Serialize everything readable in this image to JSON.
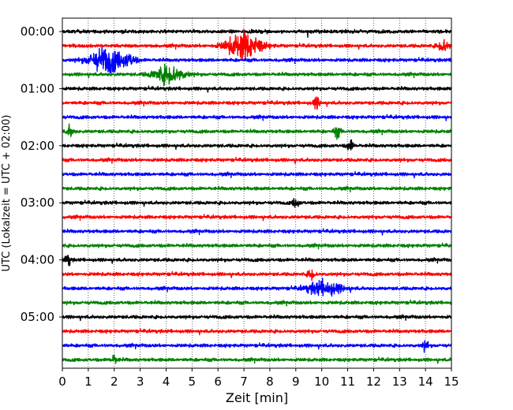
{
  "chart_data": {
    "type": "line",
    "title": "",
    "xlabel": "Zeit  [min]",
    "ylabel": "UTC (Lokalzeit = UTC + 02:00)",
    "xlim": [
      0,
      15
    ],
    "x_ticks": [
      "0",
      "1",
      "2",
      "3",
      "4",
      "5",
      "6",
      "7",
      "8",
      "9",
      "10",
      "11",
      "12",
      "13",
      "14",
      "15"
    ],
    "y_tick_labels": [
      "00:00",
      "01:00",
      "02:00",
      "03:00",
      "04:00",
      "05:00"
    ],
    "grid": "vertical dotted lines at each minute",
    "row_interval_minutes": 15,
    "traces": [
      {
        "start": "00:00",
        "color": "#000000",
        "events": []
      },
      {
        "start": "00:15",
        "color": "#ff0000",
        "events": [
          {
            "t": 7.0,
            "amp": 0.75,
            "width": 1.6
          },
          {
            "t": 14.7,
            "amp": 0.35,
            "width": 0.5
          }
        ]
      },
      {
        "start": "00:30",
        "color": "#0000ff",
        "events": [
          {
            "t": 1.7,
            "amp": 0.7,
            "width": 1.6
          },
          {
            "t": 2.6,
            "amp": 0.25,
            "width": 0.6
          }
        ]
      },
      {
        "start": "00:45",
        "color": "#008000",
        "events": [
          {
            "t": 4.1,
            "amp": 0.5,
            "width": 1.4
          }
        ]
      },
      {
        "start": "01:00",
        "color": "#000000",
        "events": []
      },
      {
        "start": "01:15",
        "color": "#ff0000",
        "events": [
          {
            "t": 9.8,
            "amp": 0.3,
            "width": 0.3
          }
        ]
      },
      {
        "start": "01:30",
        "color": "#0000ff",
        "events": []
      },
      {
        "start": "01:45",
        "color": "#008000",
        "events": [
          {
            "t": 0.3,
            "amp": 0.3,
            "width": 0.3
          },
          {
            "t": 10.6,
            "amp": 0.3,
            "width": 0.3
          }
        ]
      },
      {
        "start": "02:00",
        "color": "#000000",
        "events": [
          {
            "t": 11.1,
            "amp": 0.3,
            "width": 0.3
          }
        ]
      },
      {
        "start": "02:15",
        "color": "#ff0000",
        "events": []
      },
      {
        "start": "02:30",
        "color": "#0000ff",
        "events": []
      },
      {
        "start": "02:45",
        "color": "#008000",
        "events": []
      },
      {
        "start": "03:00",
        "color": "#000000",
        "events": [
          {
            "t": 9.0,
            "amp": 0.25,
            "width": 0.3
          }
        ]
      },
      {
        "start": "03:15",
        "color": "#ff0000",
        "events": []
      },
      {
        "start": "03:30",
        "color": "#0000ff",
        "events": []
      },
      {
        "start": "03:45",
        "color": "#008000",
        "events": []
      },
      {
        "start": "04:00",
        "color": "#000000",
        "events": [
          {
            "t": 0.2,
            "amp": 0.3,
            "width": 0.3
          }
        ]
      },
      {
        "start": "04:15",
        "color": "#ff0000",
        "events": [
          {
            "t": 9.6,
            "amp": 0.3,
            "width": 0.3
          }
        ]
      },
      {
        "start": "04:30",
        "color": "#0000ff",
        "events": [
          {
            "t": 10.1,
            "amp": 0.4,
            "width": 1.6
          }
        ]
      },
      {
        "start": "04:45",
        "color": "#008000",
        "events": []
      },
      {
        "start": "05:00",
        "color": "#000000",
        "events": []
      },
      {
        "start": "05:15",
        "color": "#ff0000",
        "events": []
      },
      {
        "start": "05:30",
        "color": "#0000ff",
        "events": [
          {
            "t": 14.0,
            "amp": 0.25,
            "width": 0.3
          }
        ]
      },
      {
        "start": "05:45",
        "color": "#008000",
        "events": [
          {
            "t": 2.0,
            "amp": 0.25,
            "width": 0.3
          }
        ]
      }
    ]
  }
}
